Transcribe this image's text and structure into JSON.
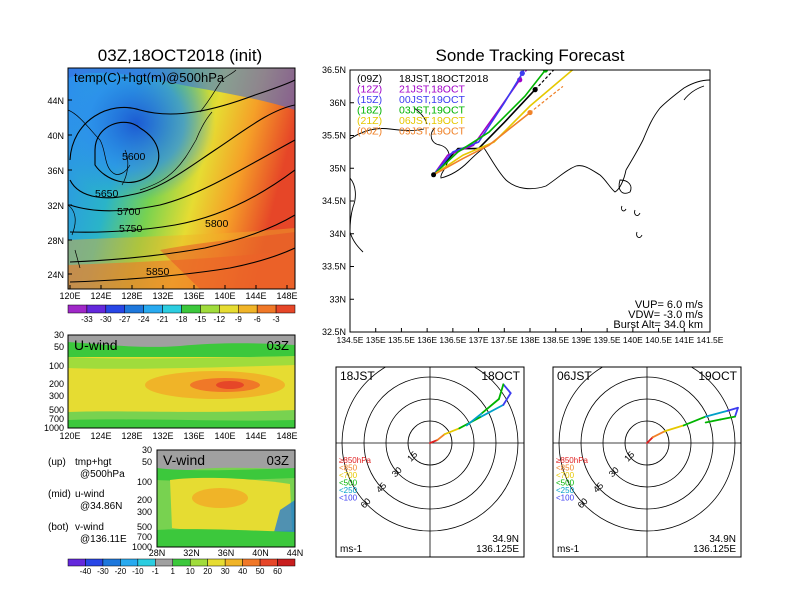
{
  "map_panel": {
    "title": "03Z,18OCT2018 (init)",
    "label": "temp(C)+hgt(m)@500hPa",
    "lat_ticks": [
      "44N",
      "40N",
      "36N",
      "32N",
      "28N",
      "24N"
    ],
    "lon_ticks": [
      "120E",
      "124E",
      "128E",
      "132E",
      "136E",
      "140E",
      "144E",
      "148E"
    ],
    "contour_labels": [
      "5600",
      "5650",
      "5700",
      "5750",
      "5800",
      "5850"
    ],
    "colorbar_labels": [
      "-33",
      "-30",
      "-27",
      "-24",
      "-21",
      "-18",
      "-15",
      "-12",
      "-9",
      "-6",
      "-3"
    ]
  },
  "u_panel": {
    "label": "U-wind",
    "time": "03Z",
    "y_ticks": [
      "30",
      "50",
      "100",
      "200",
      "300",
      "500",
      "700",
      "1000"
    ],
    "x_ticks": [
      "120E",
      "124E",
      "128E",
      "132E",
      "136E",
      "140E",
      "144E",
      "148E"
    ]
  },
  "v_panel": {
    "label": "V-wind",
    "time": "03Z",
    "y_ticks": [
      "30",
      "50",
      "100",
      "200",
      "300",
      "500",
      "700",
      "1000"
    ],
    "x_ticks": [
      "28N",
      "32N",
      "36N",
      "40N",
      "44N"
    ]
  },
  "notes": [
    {
      "k": "(up)",
      "v": "tmp+hgt"
    },
    {
      "k": "",
      "v": "@500hPa"
    },
    {
      "k": "(mid)",
      "v": "u-wind"
    },
    {
      "k": "",
      "v": "@34.86N"
    },
    {
      "k": "(bot)",
      "v": "v-wind"
    },
    {
      "k": "",
      "v": "@136.11E"
    }
  ],
  "bottom_colorbar_labels": [
    "-40",
    "-30",
    "-20",
    "-10",
    "-1",
    "1",
    "10",
    "20",
    "30",
    "40",
    "50",
    "60"
  ],
  "track_panel": {
    "title": "Sonde Tracking Forecast",
    "legend": [
      {
        "run": "(09Z)",
        "time": "18JST,18OCT2018",
        "color": "#000000"
      },
      {
        "run": "(12Z)",
        "time": "21JST,18OCT",
        "color": "#a000c8"
      },
      {
        "run": "(15Z)",
        "time": "00JST,19OCT",
        "color": "#3c3cf0"
      },
      {
        "run": "(18Z)",
        "time": "03JST,19OCT",
        "color": "#00b400"
      },
      {
        "run": "(21Z)",
        "time": "06JST,19OCT",
        "color": "#e6c800"
      },
      {
        "run": "(00Z)",
        "time": "09JST,19OCT",
        "color": "#f08228"
      }
    ],
    "lat_ticks": [
      "36.5N",
      "36N",
      "35.5N",
      "35N",
      "34.5N",
      "34N",
      "33.5N",
      "33N",
      "32.5N"
    ],
    "lon_ticks": [
      "134.5E",
      "135E",
      "135.5E",
      "136E",
      "136.5E",
      "137E",
      "137.5E",
      "138E",
      "138.5E",
      "139E",
      "139.5E",
      "140E",
      "140.5E",
      "141E",
      "141.5E"
    ],
    "params": [
      "VUP= 6.0 m/s",
      "VDW= -3.0 m/s",
      "Burst Alt= 34.0 km"
    ]
  },
  "hodo_left": {
    "time": "18JST",
    "date": "18OCT",
    "rings": [
      "15",
      "30",
      "45",
      "60"
    ],
    "levels": [
      {
        "t": "≥850hPa",
        "c": "#e01e1e"
      },
      {
        "t": "<850",
        "c": "#f08228"
      },
      {
        "t": "<700",
        "c": "#e6c800"
      },
      {
        "t": "<500",
        "c": "#00b400"
      },
      {
        "t": "<250",
        "c": "#00a0c8"
      },
      {
        "t": "<100",
        "c": "#3c3cf0"
      }
    ],
    "unit": "ms-1",
    "lat": "34.9N",
    "lon": "136.125E"
  },
  "hodo_right": {
    "time": "06JST",
    "date": "19OCT",
    "rings": [
      "15",
      "30",
      "45",
      "60"
    ],
    "levels": [
      {
        "t": "≥850hPa",
        "c": "#e01e1e"
      },
      {
        "t": "<850",
        "c": "#f08228"
      },
      {
        "t": "<700",
        "c": "#e6c800"
      },
      {
        "t": "<500",
        "c": "#00b400"
      },
      {
        "t": "<250",
        "c": "#00a0c8"
      },
      {
        "t": "<100",
        "c": "#3c3cf0"
      }
    ],
    "unit": "ms-1",
    "lat": "34.9N",
    "lon": "136.125E"
  },
  "chart_data": [
    {
      "type": "heatmap",
      "title": "03Z,18OCT2018 (init)",
      "subtitle": "temp(C)+hgt(m)@500hPa",
      "x_range": [
        120,
        149
      ],
      "y_range": [
        22,
        47
      ],
      "colorbar": [
        -33,
        -30,
        -27,
        -24,
        -21,
        -18,
        -15,
        -12,
        -9,
        -6,
        -3
      ],
      "contours": [
        5600,
        5650,
        5700,
        5750,
        5800,
        5850
      ]
    },
    {
      "type": "line",
      "title": "Sonde Tracking Forecast",
      "x_range": [
        134.5,
        141.5
      ],
      "y_range": [
        32.5,
        36.5
      ],
      "launch": [
        136.125,
        34.9
      ],
      "series": [
        {
          "name": "(09Z) 18JST,18OCT2018",
          "color": "#000000",
          "burst": [
            138.1,
            36.2
          ],
          "points": [
            [
              136.125,
              34.9
            ],
            [
              136.6,
              35.3
            ],
            [
              137.0,
              35.3
            ],
            [
              137.5,
              35.7
            ],
            [
              138.1,
              36.2
            ]
          ]
        },
        {
          "name": "(12Z) 21JST,18OCT",
          "color": "#a000c8",
          "burst": [
            137.8,
            36.35
          ],
          "points": [
            [
              136.125,
              34.9
            ],
            [
              136.4,
              35.2
            ],
            [
              136.9,
              35.35
            ],
            [
              137.4,
              35.9
            ],
            [
              137.8,
              36.35
            ]
          ]
        },
        {
          "name": "(15Z) 00JST,19OCT",
          "color": "#3c3cf0",
          "burst": [
            137.85,
            36.45
          ],
          "points": [
            [
              136.125,
              34.9
            ],
            [
              136.5,
              35.25
            ],
            [
              137.0,
              35.4
            ],
            [
              137.5,
              36.0
            ],
            [
              137.85,
              36.45
            ]
          ]
        },
        {
          "name": "(18Z) 03JST,19OCT",
          "color": "#00b400",
          "burst": [
            138.3,
            36.5
          ],
          "points": [
            [
              136.125,
              34.9
            ],
            [
              136.6,
              35.25
            ],
            [
              137.2,
              35.55
            ],
            [
              137.9,
              36.1
            ],
            [
              138.3,
              36.5
            ]
          ]
        },
        {
          "name": "(21Z) 06JST,19OCT",
          "color": "#e6c800",
          "burst": [
            138.9,
            36.55
          ],
          "points": [
            [
              136.125,
              34.9
            ],
            [
              136.7,
              35.2
            ],
            [
              137.3,
              35.4
            ],
            [
              138.0,
              35.95
            ],
            [
              138.9,
              36.55
            ]
          ]
        },
        {
          "name": "(00Z) 09JST,19OCT",
          "color": "#f08228",
          "burst": [
            138.0,
            35.85
          ],
          "points": [
            [
              136.125,
              34.9
            ],
            [
              136.7,
              35.15
            ],
            [
              137.2,
              35.35
            ],
            [
              137.6,
              35.6
            ],
            [
              138.0,
              35.85
            ]
          ]
        }
      ]
    },
    {
      "type": "line",
      "title": "18JST 18OCT hodograph",
      "x_range": [
        -75,
        75
      ],
      "y_range": [
        -75,
        75
      ],
      "points": [
        [
          0,
          0
        ],
        [
          5,
          2
        ],
        [
          10,
          6
        ],
        [
          20,
          10
        ],
        [
          35,
          18
        ],
        [
          50,
          26
        ],
        [
          55,
          34
        ],
        [
          50,
          40
        ],
        [
          47,
          30
        ],
        [
          35,
          20
        ],
        [
          25,
          12
        ]
      ]
    },
    {
      "type": "line",
      "title": "06JST 19OCT hodograph",
      "x_range": [
        -75,
        75
      ],
      "y_range": [
        -75,
        75
      ],
      "points": [
        [
          0,
          0
        ],
        [
          4,
          4
        ],
        [
          12,
          8
        ],
        [
          25,
          12
        ],
        [
          40,
          18
        ],
        [
          55,
          22
        ],
        [
          62,
          24
        ],
        [
          60,
          18
        ],
        [
          50,
          16
        ],
        [
          40,
          14
        ]
      ]
    }
  ]
}
